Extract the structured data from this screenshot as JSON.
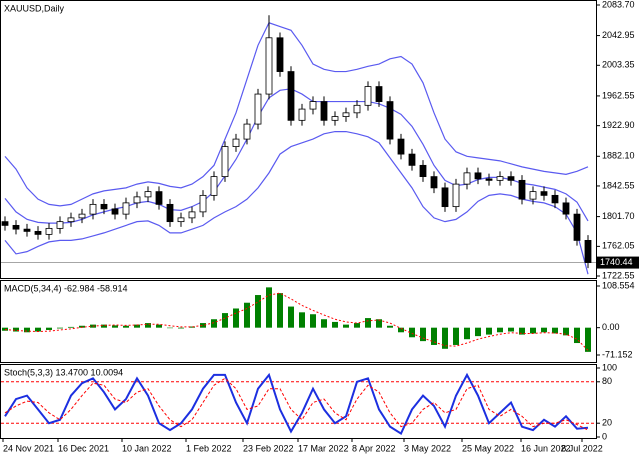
{
  "chart_data": [
    {
      "type": "candlestick",
      "title": "XAUUSD,Daily",
      "open": [
        1795,
        1790,
        1785,
        1782,
        1778,
        1786,
        1795,
        1800,
        1805,
        1818,
        1812,
        1805,
        1820,
        1828,
        1835,
        1818,
        1795,
        1800,
        1808,
        1830,
        1855,
        1895,
        1905,
        1925,
        1965,
        2040,
        1995,
        1930,
        1945,
        1955,
        1930,
        1935,
        1940,
        1950,
        1975,
        1955,
        1905,
        1885,
        1870,
        1855,
        1840,
        1815,
        1845,
        1860,
        1852,
        1850,
        1855,
        1850,
        1825,
        1835,
        1830,
        1820,
        1805,
        1770
      ],
      "high": [
        1802,
        1797,
        1792,
        1789,
        1793,
        1802,
        1807,
        1812,
        1825,
        1825,
        1819,
        1827,
        1835,
        1842,
        1842,
        1825,
        1807,
        1815,
        1837,
        1862,
        1902,
        1912,
        1932,
        1972,
        2070,
        2047,
        2002,
        1952,
        1962,
        1962,
        1942,
        1947,
        1957,
        1982,
        1982,
        1962,
        1912,
        1892,
        1877,
        1862,
        1847,
        1852,
        1867,
        1867,
        1859,
        1862,
        1862,
        1857,
        1842,
        1842,
        1837,
        1827,
        1812,
        1777
      ],
      "low": [
        1783,
        1778,
        1775,
        1771,
        1771,
        1779,
        1788,
        1793,
        1798,
        1805,
        1798,
        1798,
        1813,
        1821,
        1811,
        1788,
        1788,
        1793,
        1801,
        1823,
        1848,
        1888,
        1898,
        1918,
        1958,
        1988,
        1923,
        1923,
        1938,
        1923,
        1923,
        1928,
        1933,
        1943,
        1948,
        1898,
        1878,
        1863,
        1848,
        1833,
        1808,
        1808,
        1838,
        1845,
        1843,
        1843,
        1843,
        1818,
        1818,
        1823,
        1813,
        1798,
        1763,
        1733
      ],
      "close": [
        1790,
        1785,
        1782,
        1778,
        1786,
        1795,
        1800,
        1805,
        1818,
        1812,
        1805,
        1820,
        1828,
        1835,
        1818,
        1795,
        1800,
        1808,
        1830,
        1855,
        1895,
        1905,
        1925,
        1965,
        2040,
        1995,
        1930,
        1945,
        1955,
        1930,
        1935,
        1940,
        1950,
        1975,
        1955,
        1905,
        1885,
        1870,
        1855,
        1840,
        1815,
        1845,
        1860,
        1852,
        1850,
        1855,
        1850,
        1825,
        1835,
        1830,
        1820,
        1805,
        1770,
        1740.44
      ],
      "bands": [
        {
          "color": "#5a5af0",
          "values": [
            1882,
            1865,
            1840,
            1825,
            1818,
            1816,
            1818,
            1825,
            1832,
            1836,
            1838,
            1840,
            1845,
            1848,
            1846,
            1842,
            1840,
            1845,
            1855,
            1870,
            1905,
            1940,
            1985,
            2030,
            2060,
            2055,
            2050,
            2030,
            2005,
            1998,
            1995,
            1995,
            1998,
            2002,
            2005,
            2012,
            2015,
            2005,
            1980,
            1940,
            1905,
            1888,
            1882,
            1880,
            1878,
            1876,
            1872,
            1868,
            1865,
            1862,
            1860,
            1858,
            1862,
            1868
          ]
        },
        {
          "color": "#5a5af0",
          "values": [
            1826,
            1808,
            1798,
            1794,
            1793,
            1793,
            1794,
            1798,
            1804,
            1808,
            1812,
            1815,
            1820,
            1822,
            1818,
            1811,
            1810,
            1815,
            1822,
            1835,
            1856,
            1878,
            1905,
            1935,
            1960,
            1970,
            1972,
            1965,
            1955,
            1955,
            1955,
            1955,
            1955,
            1955,
            1952,
            1946,
            1938,
            1922,
            1898,
            1870,
            1850,
            1843,
            1845,
            1851,
            1854,
            1854,
            1851,
            1846,
            1844,
            1841,
            1838,
            1832,
            1821,
            1796
          ]
        },
        {
          "color": "#5a5af0",
          "values": [
            1770,
            1752,
            1755,
            1762,
            1768,
            1770,
            1770,
            1772,
            1776,
            1780,
            1785,
            1790,
            1795,
            1796,
            1790,
            1780,
            1780,
            1785,
            1790,
            1800,
            1808,
            1815,
            1825,
            1840,
            1860,
            1885,
            1895,
            1900,
            1905,
            1912,
            1915,
            1915,
            1912,
            1908,
            1900,
            1880,
            1860,
            1840,
            1815,
            1800,
            1795,
            1798,
            1808,
            1822,
            1830,
            1832,
            1830,
            1825,
            1822,
            1820,
            1815,
            1805,
            1780,
            1725
          ]
        }
      ],
      "ylim": [
        1722.55,
        2083.7
      ],
      "yticks": [
        {
          "value": 2083.7,
          "label": "2083.70"
        },
        2042.95,
        2003.35,
        1962.55,
        {
          "value": 1922.9,
          "label": "1922.90"
        },
        {
          "value": 1882.1,
          "label": "1882.10"
        },
        1842.55,
        {
          "value": 1801.7,
          "label": "1801.70"
        },
        1762.05,
        1722.55
      ]
    },
    {
      "type": "bar",
      "title": "MACD(5,34,4) -62.984 -58.914",
      "color": "#008000",
      "values": [
        -8,
        -10,
        -12,
        -10,
        -6,
        -2,
        2,
        5,
        8,
        8,
        6,
        5,
        8,
        12,
        8,
        0,
        -2,
        3,
        12,
        22,
        38,
        50,
        65,
        85,
        105,
        90,
        55,
        40,
        35,
        22,
        15,
        8,
        12,
        25,
        22,
        5,
        -12,
        -25,
        -35,
        -45,
        -55,
        -45,
        -30,
        -22,
        -18,
        -12,
        -10,
        -18,
        -15,
        -12,
        -15,
        -20,
        -40,
        -62.984
      ],
      "series": [
        {
          "color": "#ff0000",
          "values": [
            -5,
            -7,
            -9,
            -10,
            -9,
            -6,
            -3,
            1,
            4,
            6,
            7,
            6,
            7,
            9,
            9,
            5,
            2,
            2,
            6,
            13,
            25,
            38,
            50,
            67,
            85,
            90,
            75,
            58,
            45,
            33,
            22,
            15,
            12,
            18,
            20,
            12,
            -2,
            -15,
            -27,
            -37,
            -47,
            -48,
            -40,
            -30,
            -23,
            -17,
            -13,
            -15,
            -15,
            -13,
            -14,
            -17,
            -30,
            -58.914
          ]
        }
      ],
      "ylim": [
        -71.152,
        108.554
      ],
      "yticks": [
        108.554,
        {
          "value": 0,
          "label": "0.00"
        },
        -71.152
      ]
    },
    {
      "type": "line",
      "title": "Stoch(5,3,3) 13.4700 10.0094",
      "series": [
        {
          "color": "#1c2fe0",
          "values": [
            30,
            55,
            60,
            40,
            20,
            25,
            60,
            78,
            85,
            65,
            40,
            55,
            85,
            60,
            20,
            10,
            20,
            40,
            70,
            90,
            90,
            50,
            20,
            70,
            90,
            40,
            8,
            35,
            70,
            40,
            20,
            30,
            80,
            85,
            40,
            15,
            5,
            40,
            60,
            45,
            15,
            60,
            90,
            60,
            20,
            35,
            50,
            15,
            10,
            25,
            15,
            30,
            12,
            13.47
          ]
        },
        {
          "color": "#ff0000",
          "values": [
            35,
            45,
            52,
            50,
            35,
            25,
            40,
            60,
            78,
            75,
            55,
            50,
            65,
            70,
            45,
            25,
            15,
            25,
            50,
            75,
            85,
            70,
            40,
            45,
            70,
            70,
            40,
            25,
            50,
            55,
            35,
            25,
            55,
            75,
            65,
            35,
            15,
            20,
            40,
            50,
            35,
            40,
            70,
            75,
            40,
            30,
            40,
            30,
            15,
            20,
            20,
            25,
            18,
            10.0094
          ]
        }
      ],
      "level_color": "#ff0000",
      "ylim": [
        0,
        100
      ],
      "yticks": [
        100,
        80,
        20,
        0
      ]
    }
  ],
  "x_axis": {
    "labels": [
      "24 Nov 2021",
      "16 Dec 2021",
      "10 Jan 2022",
      "1 Feb 2022",
      "23 Feb 2022",
      "17 Mar 2022",
      "8 Apr 2022",
      "3 May 2022",
      "25 May 2022",
      "16 Jun 2022",
      "8 Jul 2022"
    ]
  }
}
